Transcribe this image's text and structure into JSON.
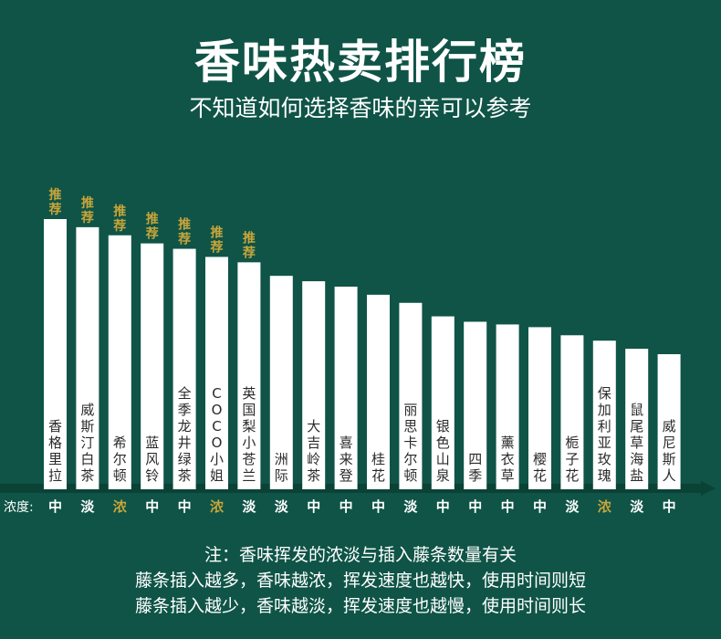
{
  "header": {
    "title": "香味热卖排行榜",
    "subtitle": "不知道如何选择香味的亲可以参考"
  },
  "chart_data": {
    "type": "bar",
    "categories": [
      "香格里拉",
      "威斯汀白茶",
      "希尔顿",
      "蓝风铃",
      "全季龙井绿茶",
      "COCO小姐",
      "英国梨小苍兰",
      "洲际",
      "大吉岭茶",
      "喜来登",
      "桂花",
      "丽思卡尔顿",
      "银色山泉",
      "四季",
      "薰衣草",
      "樱花",
      "栀子花",
      "保加利亚玫瑰",
      "鼠尾草海盐",
      "威尼斯人"
    ],
    "values": [
      100,
      97,
      94,
      91,
      89,
      86,
      84,
      79,
      77,
      75,
      72,
      69,
      64,
      62,
      61,
      60,
      57,
      55,
      52,
      50
    ],
    "recommend_label": "推荐",
    "recommended": [
      true,
      true,
      true,
      true,
      true,
      true,
      true,
      false,
      false,
      false,
      false,
      false,
      false,
      false,
      false,
      false,
      false,
      false,
      false,
      false
    ],
    "concentration_label": "浓度:",
    "concentration": [
      "中",
      "淡",
      "浓",
      "中",
      "中",
      "浓",
      "淡",
      "淡",
      "中",
      "中",
      "中",
      "淡",
      "中",
      "中",
      "中",
      "中",
      "淡",
      "浓",
      "淡",
      "中"
    ],
    "ylim": [
      0,
      100
    ],
    "colors": {
      "background": "#0f5447",
      "bar": "#ffffff",
      "bar_text": "#2a2a2a",
      "recommend": "#c9a53a",
      "strong": "#c9a53a",
      "normal": "#ffffff",
      "axis": "#0a4236"
    }
  },
  "notes": {
    "line1": "注：香味挥发的浓淡与插入藤条数量有关",
    "line2": "藤条插入越多，香味越浓，挥发速度也越快，使用时间则短",
    "line3": "藤条插入越少，香味越淡，挥发速度也越慢，使用时间则长"
  }
}
